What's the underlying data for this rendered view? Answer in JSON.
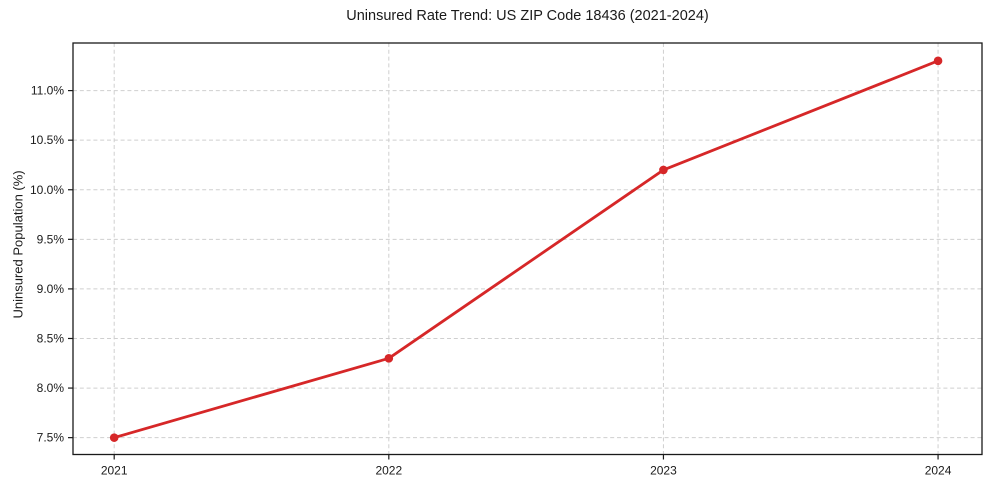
{
  "chart_data": {
    "type": "line",
    "title": "Uninsured Rate Trend: US ZIP Code 18436 (2021-2024)",
    "xlabel": "",
    "ylabel": "Uninsured Population (%)",
    "x": [
      2021,
      2022,
      2023,
      2024
    ],
    "values": [
      7.5,
      8.3,
      10.2,
      11.3
    ],
    "xticks": [
      2021,
      2022,
      2023,
      2024
    ],
    "xtick_labels": [
      "2021",
      "2022",
      "2023",
      "2024"
    ],
    "yticks": [
      7.5,
      8.0,
      8.5,
      9.0,
      9.5,
      10.0,
      10.5,
      11.0
    ],
    "ytick_labels": [
      "7.5%",
      "8.0%",
      "8.5%",
      "9.0%",
      "9.5%",
      "10.0%",
      "10.5%",
      "11.0%"
    ],
    "xlim": [
      2020.85,
      2024.16
    ],
    "ylim": [
      7.33,
      11.48
    ],
    "grid": true,
    "legend": false,
    "line_color": "#d62728",
    "marker": "circle",
    "grid_color": "#cfcfcf",
    "spine_color": "#1a1a1a",
    "background": "#ffffff"
  }
}
